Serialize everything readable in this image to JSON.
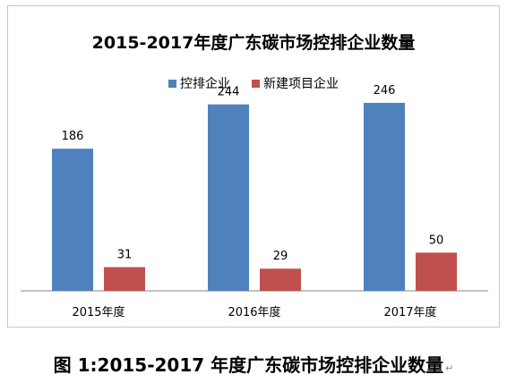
{
  "chart_data": {
    "type": "bar",
    "title": "2015-2017年度广东碳市场控排企业数量",
    "categories": [
      "2015年度",
      "2016年度",
      "2017年度"
    ],
    "series": [
      {
        "name": "控排企业",
        "values": [
          186,
          244,
          246
        ],
        "color": "#4f81bd"
      },
      {
        "name": "新建项目企业",
        "values": [
          31,
          29,
          50
        ],
        "color": "#c0504d"
      }
    ],
    "ylim": [
      0,
      260
    ],
    "grid": false,
    "legend_position": "top",
    "xlabel": "",
    "ylabel": ""
  },
  "caption": {
    "text": "图 1:2015-2017 年度广东碳市场控排企业数量",
    "return_mark": "↵"
  }
}
